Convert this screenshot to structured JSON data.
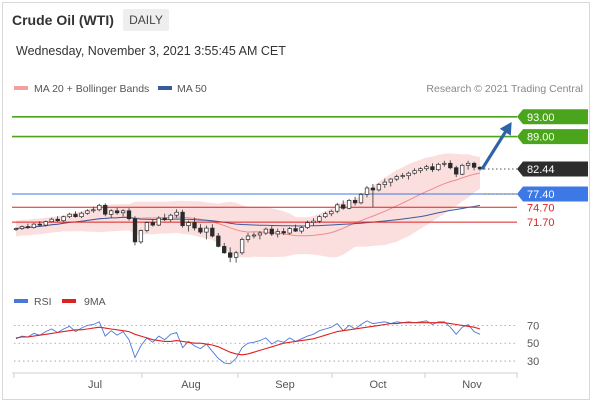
{
  "header": {
    "title": "Crude Oil (WTI)",
    "timeframe": "DAILY",
    "datetime": "Wednesday, November 3, 2021 3:55:45 AM CET"
  },
  "legend": {
    "items": [
      {
        "label": "MA 20 + Bollinger Bands",
        "color": "#f4a0a0"
      },
      {
        "label": "MA 50",
        "color": "#3a5a9a"
      }
    ],
    "credit": "Research © 2021 Trading Central"
  },
  "chart_data": [
    {
      "type": "candlestick",
      "title": "Crude Oil (WTI)",
      "x_tick_labels": [
        "Jul",
        "Aug",
        "Sep",
        "Oct",
        "Nov"
      ],
      "ylim": [
        60,
        97
      ],
      "last_price": 82.44,
      "levels": [
        {
          "value": 93.0,
          "label": "93.00",
          "color": "#4aa51c",
          "kind": "resistance"
        },
        {
          "value": 89.0,
          "label": "89.00",
          "color": "#4aa51c",
          "kind": "resistance"
        },
        {
          "value": 77.4,
          "label": "77.40",
          "color": "#3c78e6",
          "kind": "pivot"
        },
        {
          "value": 74.7,
          "label": "74.70",
          "color": "#dd2222",
          "kind": "support"
        },
        {
          "value": 71.7,
          "label": "71.70",
          "color": "#dd2222",
          "kind": "support"
        }
      ],
      "target_arrow": {
        "from": 82.4,
        "to": 92.5,
        "color": "#2f63a8"
      },
      "candles": [
        [
          70.2,
          70.6,
          69.9,
          70.4
        ],
        [
          70.4,
          71.0,
          70.1,
          70.8
        ],
        [
          70.8,
          71.4,
          70.3,
          70.6
        ],
        [
          70.6,
          71.5,
          70.4,
          71.3
        ],
        [
          71.3,
          71.9,
          70.9,
          71.1
        ],
        [
          71.1,
          72.0,
          70.8,
          71.8
        ],
        [
          71.8,
          72.6,
          71.6,
          72.3
        ],
        [
          72.3,
          72.9,
          71.7,
          72.0
        ],
        [
          72.0,
          73.0,
          71.8,
          72.8
        ],
        [
          72.8,
          73.6,
          72.5,
          73.3
        ],
        [
          73.3,
          73.9,
          72.6,
          72.8
        ],
        [
          72.8,
          73.8,
          72.5,
          73.5
        ],
        [
          73.5,
          74.3,
          73.2,
          74.0
        ],
        [
          74.0,
          74.8,
          73.6,
          74.2
        ],
        [
          74.2,
          75.4,
          73.9,
          75.1
        ],
        [
          75.1,
          75.5,
          72.9,
          73.3
        ],
        [
          73.3,
          74.3,
          72.6,
          74.0
        ],
        [
          74.0,
          74.6,
          73.2,
          73.6
        ],
        [
          73.6,
          74.3,
          72.9,
          74.0
        ],
        [
          74.0,
          74.5,
          72.0,
          72.4
        ],
        [
          72.4,
          72.9,
          67.0,
          67.7
        ],
        [
          67.7,
          70.2,
          67.3,
          70.0
        ],
        [
          70.0,
          71.8,
          69.6,
          71.6
        ],
        [
          71.6,
          72.3,
          70.8,
          71.1
        ],
        [
          71.1,
          72.9,
          70.9,
          72.5
        ],
        [
          72.5,
          73.4,
          71.9,
          72.2
        ],
        [
          72.2,
          73.4,
          71.8,
          73.1
        ],
        [
          73.1,
          74.3,
          72.6,
          73.7
        ],
        [
          73.7,
          74.2,
          70.6,
          71.0
        ],
        [
          71.0,
          72.0,
          69.8,
          71.6
        ],
        [
          71.6,
          72.6,
          70.0,
          70.5
        ],
        [
          70.5,
          71.3,
          69.3,
          69.7
        ],
        [
          69.7,
          71.0,
          68.2,
          70.5
        ],
        [
          70.5,
          71.3,
          68.6,
          68.9
        ],
        [
          68.9,
          69.5,
          66.6,
          66.8
        ],
        [
          66.8,
          67.5,
          65.3,
          65.5
        ],
        [
          65.5,
          66.6,
          63.6,
          64.6
        ],
        [
          64.6,
          65.9,
          63.5,
          65.5
        ],
        [
          65.5,
          68.6,
          65.1,
          68.2
        ],
        [
          68.2,
          69.5,
          67.6,
          68.9
        ],
        [
          68.9,
          69.6,
          68.4,
          69.1
        ],
        [
          69.1,
          69.9,
          68.2,
          69.5
        ],
        [
          69.5,
          70.6,
          69.1,
          70.3
        ],
        [
          70.3,
          70.9,
          68.9,
          69.3
        ],
        [
          69.3,
          70.4,
          68.6,
          69.8
        ],
        [
          69.8,
          70.5,
          69.1,
          69.5
        ],
        [
          69.5,
          70.7,
          69.2,
          70.4
        ],
        [
          70.4,
          71.2,
          69.7,
          69.9
        ],
        [
          69.9,
          70.9,
          69.4,
          70.6
        ],
        [
          70.6,
          72.0,
          70.3,
          71.6
        ],
        [
          71.6,
          72.5,
          71.0,
          71.9
        ],
        [
          71.9,
          73.1,
          71.5,
          72.8
        ],
        [
          72.8,
          73.8,
          72.5,
          73.4
        ],
        [
          73.4,
          74.2,
          72.9,
          73.9
        ],
        [
          73.9,
          75.6,
          73.5,
          75.2
        ],
        [
          75.2,
          76.1,
          74.2,
          74.5
        ],
        [
          74.5,
          76.4,
          74.3,
          76.1
        ],
        [
          76.1,
          76.8,
          75.1,
          75.6
        ],
        [
          75.6,
          77.6,
          75.3,
          77.3
        ],
        [
          77.3,
          79.0,
          76.7,
          78.6
        ],
        [
          78.6,
          79.4,
          74.7,
          78.2
        ],
        [
          78.2,
          79.6,
          77.9,
          79.3
        ],
        [
          79.3,
          80.5,
          78.6,
          79.8
        ],
        [
          79.8,
          80.6,
          78.9,
          80.4
        ],
        [
          80.4,
          81.3,
          80.0,
          80.9
        ],
        [
          80.9,
          81.6,
          80.5,
          81.1
        ],
        [
          81.1,
          81.9,
          80.3,
          81.6
        ],
        [
          81.6,
          82.6,
          81.3,
          82.1
        ],
        [
          82.1,
          82.8,
          81.6,
          82.5
        ],
        [
          82.5,
          83.3,
          82.1,
          82.9
        ],
        [
          82.9,
          83.6,
          81.8,
          82.3
        ],
        [
          82.3,
          83.7,
          82.0,
          83.4
        ],
        [
          83.4,
          84.1,
          82.9,
          83.6
        ],
        [
          83.6,
          84.2,
          82.4,
          82.7
        ],
        [
          82.7,
          83.1,
          80.8,
          81.4
        ],
        [
          81.4,
          83.5,
          81.2,
          83.2
        ],
        [
          83.2,
          84.1,
          82.3,
          83.6
        ],
        [
          83.6,
          83.9,
          82.2,
          82.8
        ],
        [
          82.8,
          83.0,
          82.1,
          82.44
        ]
      ]
    },
    {
      "type": "line",
      "title": "RSI",
      "series": [
        {
          "name": "RSI",
          "color": "#4a78d8",
          "values": [
            55,
            58,
            57,
            61,
            59,
            63,
            66,
            62,
            66,
            69,
            63,
            67,
            70,
            71,
            74,
            58,
            64,
            59,
            63,
            54,
            34,
            47,
            56,
            51,
            58,
            54,
            60,
            62,
            45,
            52,
            47,
            44,
            49,
            41,
            33,
            28,
            27,
            33,
            45,
            50,
            51,
            53,
            56,
            49,
            53,
            51,
            56,
            52,
            55,
            58,
            60,
            64,
            66,
            68,
            72,
            64,
            70,
            66,
            71,
            75,
            72,
            73,
            74,
            72,
            74,
            73,
            74,
            73,
            74,
            75,
            71,
            74,
            74,
            68,
            60,
            68,
            71,
            63,
            60
          ]
        },
        {
          "name": "9MA",
          "color": "#dd2222",
          "values": [
            56,
            57,
            57,
            58,
            59,
            60,
            61,
            62,
            63,
            64,
            65,
            65,
            66,
            67,
            68,
            67,
            66,
            65,
            64,
            63,
            60,
            58,
            56,
            54,
            53,
            52,
            52,
            53,
            52,
            51,
            50,
            50,
            49,
            48,
            46,
            43,
            40,
            38,
            37,
            38,
            40,
            42,
            44,
            46,
            48,
            50,
            51,
            52,
            53,
            54,
            55,
            57,
            59,
            61,
            63,
            64,
            65,
            66,
            67,
            68,
            69,
            70,
            71,
            72,
            72,
            73,
            73,
            73,
            73,
            73,
            73,
            73,
            73,
            72,
            71,
            70,
            69,
            68,
            66
          ]
        }
      ],
      "y_tick_labels": [
        "70",
        "50",
        "30"
      ],
      "ylim": [
        20,
        85
      ]
    }
  ]
}
